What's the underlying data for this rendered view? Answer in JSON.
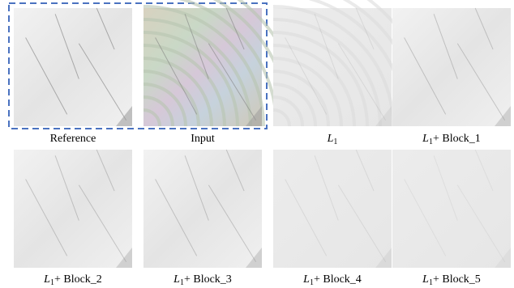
{
  "figure": {
    "panels": [
      {
        "caption": {
          "text": "Reference"
        }
      },
      {
        "caption": {
          "text": "Input"
        }
      },
      {
        "caption": {
          "symbol": "L",
          "subscript": "1"
        }
      },
      {
        "caption": {
          "symbol": "L",
          "subscript": "1",
          "suffix": "+ Block_1"
        }
      },
      {
        "caption": {
          "symbol": "L",
          "subscript": "1",
          "suffix": "+ Block_2"
        }
      },
      {
        "caption": {
          "symbol": "L",
          "subscript": "1",
          "suffix": "+ Block_3"
        }
      },
      {
        "caption": {
          "symbol": "L",
          "subscript": "1",
          "suffix": "+ Block_4"
        }
      },
      {
        "caption": {
          "symbol": "L",
          "subscript": "1",
          "suffix": "+ Block_5"
        }
      }
    ]
  }
}
